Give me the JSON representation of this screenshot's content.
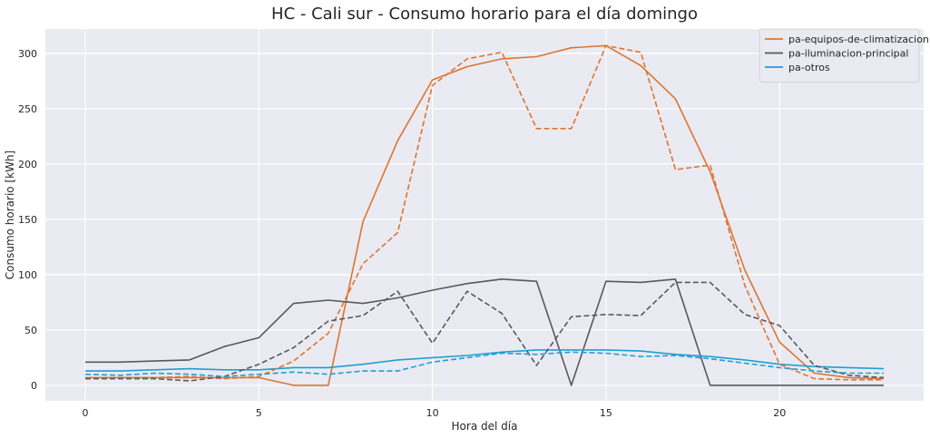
{
  "chart_data": {
    "type": "line",
    "title": "HC - Cali sur - Consumo horario para el día domingo",
    "xlabel": "Hora del día",
    "ylabel": "Consumo horario [kWh]",
    "xlim": [
      -1.15,
      24.15
    ],
    "ylim": [
      -14,
      322
    ],
    "xticks": [
      0,
      5,
      10,
      15,
      20
    ],
    "yticks": [
      0,
      50,
      100,
      150,
      200,
      250,
      300
    ],
    "grid": true,
    "legend_position": "top-right",
    "background_color": "#eaeaf2",
    "x": [
      0,
      1,
      2,
      3,
      4,
      5,
      6,
      7,
      8,
      9,
      10,
      11,
      12,
      13,
      14,
      15,
      16,
      17,
      18,
      19,
      20,
      21,
      22,
      23
    ],
    "series": [
      {
        "name": "pa-equipos-de-climatizacion",
        "color": "#dd7530",
        "style": "solid",
        "in_legend": true,
        "values": [
          7,
          7,
          7,
          7,
          7,
          7,
          0,
          0,
          148,
          221,
          276,
          288,
          295,
          297,
          305,
          307,
          289,
          259,
          193,
          104,
          39,
          11,
          7,
          6
        ]
      },
      {
        "name": "pa-iluminacion-principal",
        "color": "#595959",
        "style": "solid",
        "in_legend": true,
        "values": [
          21,
          21,
          22,
          23,
          35,
          43,
          74,
          77,
          74,
          79,
          86,
          92,
          96,
          94,
          0,
          94,
          93,
          96,
          0,
          0,
          0,
          0,
          0,
          0
        ]
      },
      {
        "name": "pa-otros",
        "color": "#1f9fd3",
        "style": "solid",
        "in_legend": true,
        "values": [
          13,
          13,
          14,
          15,
          14,
          14,
          16,
          16,
          19,
          23,
          25,
          27,
          30,
          32,
          32,
          32,
          31,
          28,
          26,
          23,
          19,
          17,
          16,
          15
        ]
      },
      {
        "name": "",
        "color": "#dd7530",
        "style": "dashed",
        "in_legend": false,
        "values": [
          6,
          7,
          7,
          8,
          6,
          8,
          22,
          47,
          110,
          138,
          271,
          295,
          301,
          232,
          232,
          307,
          301,
          195,
          199,
          90,
          19,
          6,
          5,
          5
        ]
      },
      {
        "name": "",
        "color": "#595959",
        "style": "dashed",
        "in_legend": false,
        "values": [
          6,
          6,
          6,
          4,
          8,
          19,
          34,
          58,
          63,
          85,
          38,
          85,
          65,
          18,
          62,
          64,
          63,
          93,
          93,
          64,
          54,
          18,
          9,
          7
        ]
      },
      {
        "name": "",
        "color": "#1f9fd3",
        "style": "dashed",
        "in_legend": false,
        "values": [
          10,
          9,
          11,
          10,
          8,
          10,
          12,
          10,
          13,
          13,
          21,
          25,
          29,
          28,
          30,
          29,
          26,
          27,
          24,
          20,
          16,
          13,
          11,
          11
        ]
      }
    ]
  }
}
